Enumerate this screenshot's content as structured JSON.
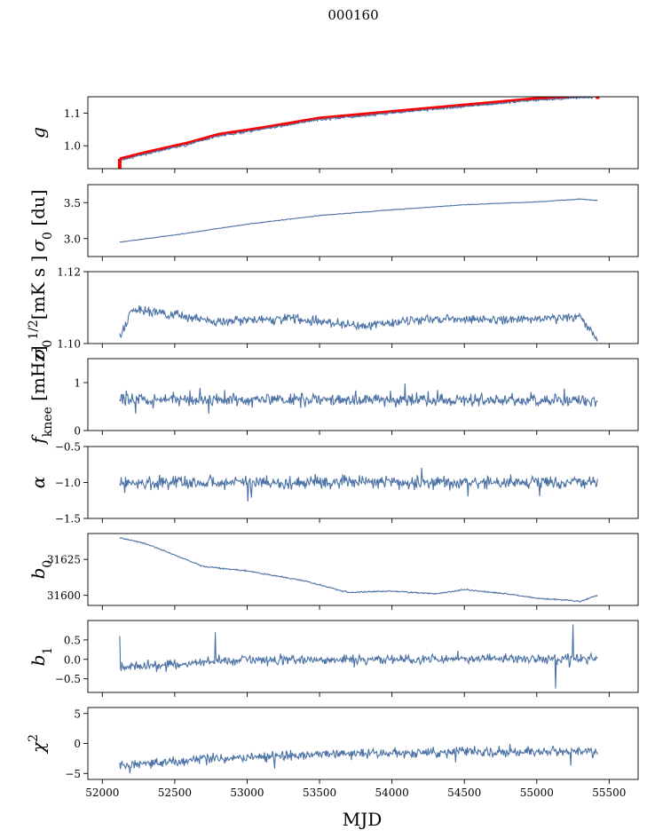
{
  "figure_title": "000160",
  "chart_data": {
    "type": "line",
    "title": "000160",
    "xlabel": "MJD",
    "xlim": [
      51900,
      55700
    ],
    "xticks": [
      52000,
      52500,
      53000,
      53500,
      54000,
      54500,
      55000,
      55500
    ],
    "xtick_labels": [
      "52000",
      "52500",
      "53000",
      "53500",
      "54000",
      "54500",
      "55000",
      "55500"
    ],
    "x_start": 52120,
    "x_end": 55420,
    "series_color": "#4c72a5",
    "fit_color": "#ff0000",
    "panels": [
      {
        "id": "gain",
        "ylabel": "g",
        "ylabel_sub": "",
        "ylabel_sup": "",
        "ylabel_tail": "",
        "ylim": [
          0.93,
          1.15
        ],
        "yticks": [
          1.0,
          1.1
        ],
        "ytick_labels": [
          "1.0",
          "1.1"
        ],
        "kind": "gain",
        "trend": [
          [
            52120,
            0.955
          ],
          [
            52300,
            0.975
          ],
          [
            52600,
            1.005
          ],
          [
            52800,
            1.03
          ],
          [
            53100,
            1.05
          ],
          [
            53500,
            1.08
          ],
          [
            54000,
            1.1
          ],
          [
            54500,
            1.12
          ],
          [
            55000,
            1.14
          ],
          [
            55420,
            1.15
          ]
        ],
        "noise": 0.003,
        "fit_offset": 0.005,
        "spike": {
          "x": 52120,
          "y0": 0.93,
          "y1": 0.96
        }
      },
      {
        "id": "sigma0-du",
        "ylabel": "σ",
        "ylabel_sub": "0",
        "ylabel_sup": "",
        "ylabel_tail": " [du]",
        "ylim": [
          2.75,
          3.75
        ],
        "yticks": [
          3.0,
          3.5
        ],
        "ytick_labels": [
          "3.0",
          "3.5"
        ],
        "kind": "trend",
        "trend": [
          [
            52120,
            2.95
          ],
          [
            52500,
            3.05
          ],
          [
            53000,
            3.2
          ],
          [
            53500,
            3.32
          ],
          [
            54000,
            3.4
          ],
          [
            54500,
            3.47
          ],
          [
            55000,
            3.51
          ],
          [
            55300,
            3.55
          ],
          [
            55420,
            3.53
          ]
        ],
        "noise": 0.004
      },
      {
        "id": "sigma0-mk",
        "ylabel": "σ",
        "ylabel_sub": "0",
        "ylabel_sup": "1/2",
        "ylabel_tail": "[mK s ]",
        "ylim": [
          1.1,
          1.12
        ],
        "yticks": [
          1.1,
          1.12
        ],
        "ytick_labels": [
          "1.10",
          "1.12"
        ],
        "kind": "trend",
        "trend": [
          [
            52120,
            1.1015
          ],
          [
            52200,
            1.1095
          ],
          [
            52500,
            1.108
          ],
          [
            52800,
            1.106
          ],
          [
            53300,
            1.107
          ],
          [
            53800,
            1.105
          ],
          [
            54300,
            1.107
          ],
          [
            54800,
            1.1065
          ],
          [
            55300,
            1.1075
          ],
          [
            55420,
            1.101
          ]
        ],
        "noise": 0.0011
      },
      {
        "id": "fknee",
        "ylabel": "f",
        "ylabel_sub": "knee",
        "ylabel_sup": "",
        "ylabel_tail": " [mHz]",
        "ylim": [
          0,
          1.5
        ],
        "yticks": [
          0,
          1
        ],
        "ytick_labels": [
          "0",
          "1"
        ],
        "kind": "noise",
        "trend": [
          [
            52120,
            0.65
          ],
          [
            55420,
            0.63
          ]
        ],
        "noise": 0.11
      },
      {
        "id": "alpha",
        "ylabel": "α",
        "ylabel_sub": "",
        "ylabel_sup": "",
        "ylabel_tail": "",
        "ylim": [
          -1.5,
          -0.5
        ],
        "yticks": [
          -1.5,
          -1.0,
          -0.5
        ],
        "ytick_labels": [
          "−1.5",
          "−1.0",
          "−0.5"
        ],
        "kind": "noise",
        "trend": [
          [
            52120,
            -1.0
          ],
          [
            55420,
            -1.0
          ]
        ],
        "noise": 0.08
      },
      {
        "id": "b0",
        "ylabel": "b",
        "ylabel_sub": "0",
        "ylabel_sup": "",
        "ylabel_tail": "",
        "ylim": [
          31593,
          31643
        ],
        "yticks": [
          31600,
          31625
        ],
        "ytick_labels": [
          "31600",
          "31625"
        ],
        "kind": "trend",
        "trend": [
          [
            52120,
            31640
          ],
          [
            52300,
            31636
          ],
          [
            52500,
            31628
          ],
          [
            52700,
            31620
          ],
          [
            53000,
            31617
          ],
          [
            53400,
            31610
          ],
          [
            53700,
            31602
          ],
          [
            54000,
            31603
          ],
          [
            54300,
            31601
          ],
          [
            54500,
            31604
          ],
          [
            54800,
            31601
          ],
          [
            55000,
            31598
          ],
          [
            55300,
            31596
          ],
          [
            55420,
            31600
          ]
        ],
        "noise": 0.4
      },
      {
        "id": "b1",
        "ylabel": "b",
        "ylabel_sub": "1",
        "ylabel_sup": "",
        "ylabel_tail": "",
        "ylim": [
          -0.85,
          1.0
        ],
        "yticks": [
          -0.5,
          0.0,
          0.5
        ],
        "ytick_labels": [
          "−0.5",
          "0.0",
          "0.5"
        ],
        "kind": "noise",
        "trend": [
          [
            52120,
            -0.2
          ],
          [
            52500,
            -0.12
          ],
          [
            53000,
            -0.02
          ],
          [
            54000,
            0.0
          ],
          [
            55000,
            0.02
          ],
          [
            55420,
            0.02
          ]
        ],
        "noise": 0.1,
        "extra": [
          [
            52120,
            0.6
          ],
          [
            55250,
            0.9
          ],
          [
            55130,
            -0.75
          ],
          [
            52780,
            0.7
          ]
        ]
      },
      {
        "id": "chi2",
        "ylabel": "χ",
        "ylabel_sub": "",
        "ylabel_sup": "2",
        "ylabel_tail": "",
        "ylim": [
          -6,
          6
        ],
        "yticks": [
          -5,
          0,
          5
        ],
        "ytick_labels": [
          "−5",
          "0",
          "5"
        ],
        "kind": "noise",
        "trend": [
          [
            52120,
            -3.5
          ],
          [
            52500,
            -3.0
          ],
          [
            53000,
            -2.3
          ],
          [
            53500,
            -1.8
          ],
          [
            54000,
            -1.6
          ],
          [
            54500,
            -1.4
          ],
          [
            55000,
            -1.3
          ],
          [
            55420,
            -1.4
          ]
        ],
        "noise": 0.7
      }
    ]
  }
}
